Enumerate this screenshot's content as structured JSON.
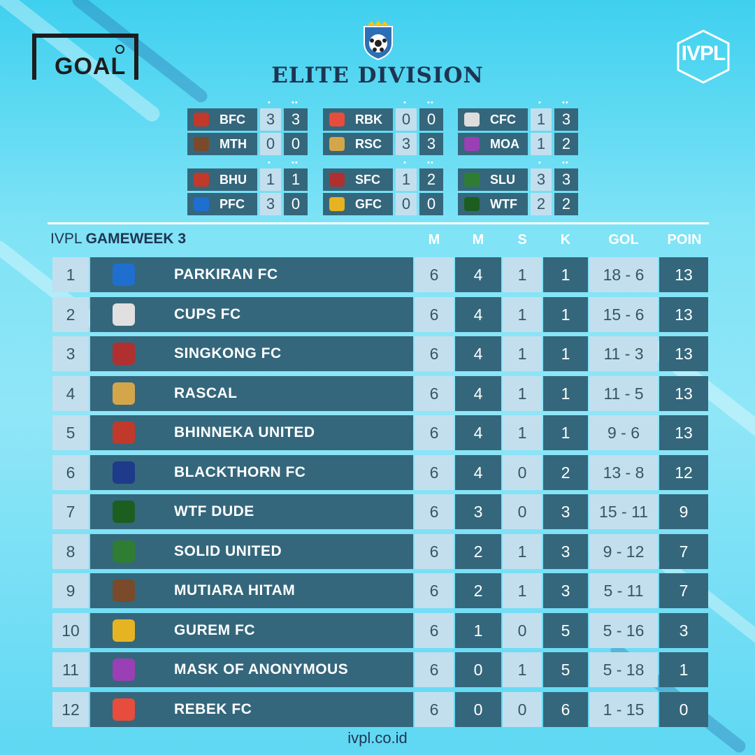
{
  "brand_left": "GOAL",
  "brand_right": "IVPL",
  "title": "ELITE DIVISION",
  "colors": {
    "dark_cell": "#34677c",
    "light_cell": "#c3dfee",
    "title": "#1e3552"
  },
  "matches": [
    {
      "home": {
        "code": "BFC",
        "s1": "3",
        "s2": "3",
        "color": "#c0392b"
      },
      "away": {
        "code": "MTH",
        "s1": "0",
        "s2": "0",
        "color": "#7a4a2a"
      }
    },
    {
      "home": {
        "code": "RBK",
        "s1": "0",
        "s2": "0",
        "color": "#e74c3c"
      },
      "away": {
        "code": "RSC",
        "s1": "3",
        "s2": "3",
        "color": "#d4a64a"
      }
    },
    {
      "home": {
        "code": "CFC",
        "s1": "1",
        "s2": "3",
        "color": "#dddddd"
      },
      "away": {
        "code": "MOA",
        "s1": "1",
        "s2": "2",
        "color": "#9b3fb5"
      }
    },
    {
      "home": {
        "code": "BHU",
        "s1": "1",
        "s2": "1",
        "color": "#c0392b"
      },
      "away": {
        "code": "PFC",
        "s1": "3",
        "s2": "0",
        "color": "#1f6fd1"
      }
    },
    {
      "home": {
        "code": "SFC",
        "s1": "1",
        "s2": "2",
        "color": "#b03030"
      },
      "away": {
        "code": "GFC",
        "s1": "0",
        "s2": "0",
        "color": "#e6b422"
      }
    },
    {
      "home": {
        "code": "SLU",
        "s1": "3",
        "s2": "3",
        "color": "#2e7d32"
      },
      "away": {
        "code": "WTF",
        "s1": "2",
        "s2": "2",
        "color": "#1b5e20"
      }
    }
  ],
  "standings_header": {
    "prefix": "IVPL",
    "label": "GAMEWEEK 3"
  },
  "columns": [
    "M",
    "M",
    "S",
    "K",
    "GOL",
    "POIN"
  ],
  "standings": [
    {
      "rank": "1",
      "team": "PARKIRAN FC",
      "m": "6",
      "w": "4",
      "d": "1",
      "l": "1",
      "gol": "18 - 6",
      "pts": "13",
      "color": "#1f6fd1"
    },
    {
      "rank": "2",
      "team": "CUPS FC",
      "m": "6",
      "w": "4",
      "d": "1",
      "l": "1",
      "gol": "15 - 6",
      "pts": "13",
      "color": "#e0e0e0"
    },
    {
      "rank": "3",
      "team": "SINGKONG FC",
      "m": "6",
      "w": "4",
      "d": "1",
      "l": "1",
      "gol": "11 - 3",
      "pts": "13",
      "color": "#b03030"
    },
    {
      "rank": "4",
      "team": "RASCAL",
      "m": "6",
      "w": "4",
      "d": "1",
      "l": "1",
      "gol": "11 - 5",
      "pts": "13",
      "color": "#d4a64a"
    },
    {
      "rank": "5",
      "team": "BHINNEKA UNITED",
      "m": "6",
      "w": "4",
      "d": "1",
      "l": "1",
      "gol": "9 - 6",
      "pts": "13",
      "color": "#c0392b"
    },
    {
      "rank": "6",
      "team": "BLACKTHORN FC",
      "m": "6",
      "w": "4",
      "d": "0",
      "l": "2",
      "gol": "13 - 8",
      "pts": "12",
      "color": "#1e3a8a"
    },
    {
      "rank": "7",
      "team": "WTF DUDE",
      "m": "6",
      "w": "3",
      "d": "0",
      "l": "3",
      "gol": "15 - 11",
      "pts": "9",
      "color": "#1b5e20"
    },
    {
      "rank": "8",
      "team": "SOLID UNITED",
      "m": "6",
      "w": "2",
      "d": "1",
      "l": "3",
      "gol": "9 - 12",
      "pts": "7",
      "color": "#2e7d32"
    },
    {
      "rank": "9",
      "team": "MUTIARA HITAM",
      "m": "6",
      "w": "2",
      "d": "1",
      "l": "3",
      "gol": "5 - 11",
      "pts": "7",
      "color": "#7a4a2a"
    },
    {
      "rank": "10",
      "team": "GUREM FC",
      "m": "6",
      "w": "1",
      "d": "0",
      "l": "5",
      "gol": "5 - 16",
      "pts": "3",
      "color": "#e6b422"
    },
    {
      "rank": "11",
      "team": "MASK OF ANONYMOUS",
      "m": "6",
      "w": "0",
      "d": "1",
      "l": "5",
      "gol": "5 - 18",
      "pts": "1",
      "color": "#9b3fb5"
    },
    {
      "rank": "12",
      "team": "REBEK FC",
      "m": "6",
      "w": "0",
      "d": "0",
      "l": "6",
      "gol": "1 - 15",
      "pts": "0",
      "color": "#e74c3c"
    }
  ],
  "footer": "ivpl.co.id"
}
